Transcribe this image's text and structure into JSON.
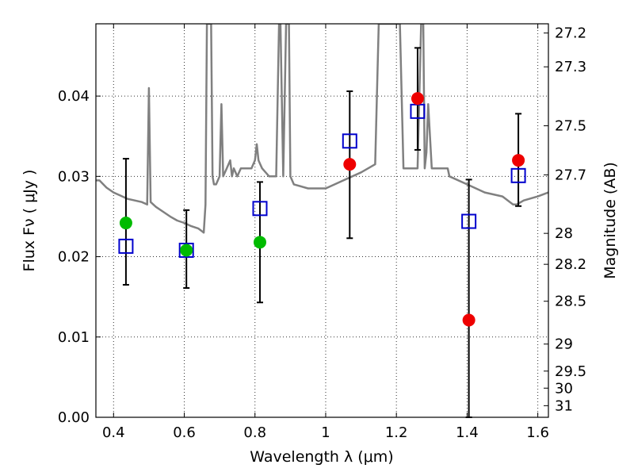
{
  "chart_data": {
    "type": "scatter",
    "xlabel": "Wavelength  λ (μm)",
    "ylabel": "Flux  Fν  ( μJy )",
    "ylabel_right": "Magnitude (AB)",
    "xlim": [
      0.35,
      1.63
    ],
    "ylim": [
      0.0,
      0.049
    ],
    "grid": true,
    "x_ticks": [
      {
        "value": 0.4,
        "label": "0.4"
      },
      {
        "value": 0.6,
        "label": "0.6"
      },
      {
        "value": 0.8,
        "label": "0.8"
      },
      {
        "value": 1.0,
        "label": "1"
      },
      {
        "value": 1.2,
        "label": "1.2"
      },
      {
        "value": 1.4,
        "label": "1.4"
      },
      {
        "value": 1.6,
        "label": "1.6"
      }
    ],
    "y_ticks": [
      {
        "value": 0.0,
        "label": "0.00"
      },
      {
        "value": 0.01,
        "label": "0.01"
      },
      {
        "value": 0.02,
        "label": "0.02"
      },
      {
        "value": 0.03,
        "label": "0.03"
      },
      {
        "value": 0.04,
        "label": "0.04"
      }
    ],
    "right_ticks": [
      {
        "mag": 27.2,
        "label": "27.2"
      },
      {
        "mag": 27.3,
        "label": "27.3"
      },
      {
        "mag": 27.5,
        "label": "27.5"
      },
      {
        "mag": 27.7,
        "label": "27.7"
      },
      {
        "mag": 28.0,
        "label": "28"
      },
      {
        "mag": 28.2,
        "label": "28.2"
      },
      {
        "mag": 28.5,
        "label": "28.5"
      },
      {
        "mag": 29.0,
        "label": "29"
      },
      {
        "mag": 29.5,
        "label": "29.5"
      },
      {
        "mag": 30.0,
        "label": "30"
      },
      {
        "mag": 31.0,
        "label": "31"
      }
    ],
    "magnitude_zero_point_ujy": 3630000000,
    "series": [
      {
        "kind": "template-spectrum",
        "color": "#808080",
        "x": [
          0.35,
          0.36,
          0.38,
          0.4,
          0.42,
          0.44,
          0.46,
          0.48,
          0.495,
          0.5,
          0.505,
          0.52,
          0.54,
          0.56,
          0.58,
          0.6,
          0.62,
          0.64,
          0.655,
          0.66,
          0.664,
          0.668,
          0.672,
          0.676,
          0.68,
          0.684,
          0.69,
          0.7,
          0.705,
          0.71,
          0.72,
          0.73,
          0.735,
          0.74,
          0.75,
          0.76,
          0.79,
          0.8,
          0.805,
          0.81,
          0.815,
          0.82,
          0.84,
          0.86,
          0.868,
          0.872,
          0.88,
          0.888,
          0.892,
          0.896,
          0.9,
          0.91,
          0.95,
          1.0,
          1.05,
          1.1,
          1.14,
          1.15,
          1.16,
          1.2,
          1.21,
          1.22,
          1.24,
          1.26,
          1.27,
          1.276,
          1.28,
          1.285,
          1.29,
          1.3,
          1.34,
          1.345,
          1.35,
          1.4,
          1.45,
          1.5,
          1.53,
          1.54,
          1.56,
          1.6,
          1.63
        ],
        "y": [
          0.0295,
          0.0295,
          0.0286,
          0.028,
          0.0276,
          0.0272,
          0.027,
          0.0268,
          0.0265,
          0.041,
          0.0268,
          0.0262,
          0.0256,
          0.025,
          0.0245,
          0.0242,
          0.0238,
          0.0235,
          0.023,
          0.0265,
          0.049,
          0.049,
          0.049,
          0.049,
          0.03,
          0.029,
          0.029,
          0.03,
          0.039,
          0.03,
          0.031,
          0.032,
          0.03,
          0.031,
          0.03,
          0.031,
          0.031,
          0.032,
          0.034,
          0.032,
          0.0315,
          0.031,
          0.03,
          0.03,
          0.049,
          0.049,
          0.03,
          0.049,
          0.049,
          0.049,
          0.03,
          0.029,
          0.0285,
          0.0285,
          0.0295,
          0.0305,
          0.0315,
          0.049,
          0.049,
          0.049,
          0.049,
          0.031,
          0.031,
          0.031,
          0.049,
          0.049,
          0.031,
          0.033,
          0.039,
          0.031,
          0.031,
          0.031,
          0.03,
          0.029,
          0.028,
          0.0275,
          0.0265,
          0.0265,
          0.027,
          0.0275,
          0.028
        ]
      },
      {
        "kind": "model-photometry",
        "marker": "open-square",
        "color": "#0000cc",
        "points": [
          {
            "x": 0.435,
            "y": 0.0213
          },
          {
            "x": 0.606,
            "y": 0.0208
          },
          {
            "x": 0.814,
            "y": 0.026
          },
          {
            "x": 1.068,
            "y": 0.0344
          },
          {
            "x": 1.26,
            "y": 0.0381
          },
          {
            "x": 1.405,
            "y": 0.0244
          },
          {
            "x": 1.545,
            "y": 0.0301
          }
        ]
      },
      {
        "kind": "observed-optical",
        "marker": "filled-circle",
        "color": "#00bb00",
        "points": [
          {
            "x": 0.435,
            "y": 0.0242,
            "err_low": 0.0077,
            "err_high": 0.008
          },
          {
            "x": 0.606,
            "y": 0.0208,
            "err_low": 0.0047,
            "err_high": 0.005
          },
          {
            "x": 0.814,
            "y": 0.0218,
            "err_low": 0.0075,
            "err_high": 0.0075
          }
        ]
      },
      {
        "kind": "observed-nir",
        "marker": "filled-circle",
        "color": "#ee0000",
        "points": [
          {
            "x": 1.068,
            "y": 0.0315,
            "err_low": 0.0092,
            "err_high": 0.0091
          },
          {
            "x": 1.26,
            "y": 0.0397,
            "err_low": 0.0064,
            "err_high": 0.0063
          },
          {
            "x": 1.405,
            "y": 0.0121,
            "err_low": 0.0121,
            "err_high": 0.0175
          },
          {
            "x": 1.545,
            "y": 0.032,
            "err_low": 0.0057,
            "err_high": 0.0058
          }
        ]
      }
    ]
  }
}
